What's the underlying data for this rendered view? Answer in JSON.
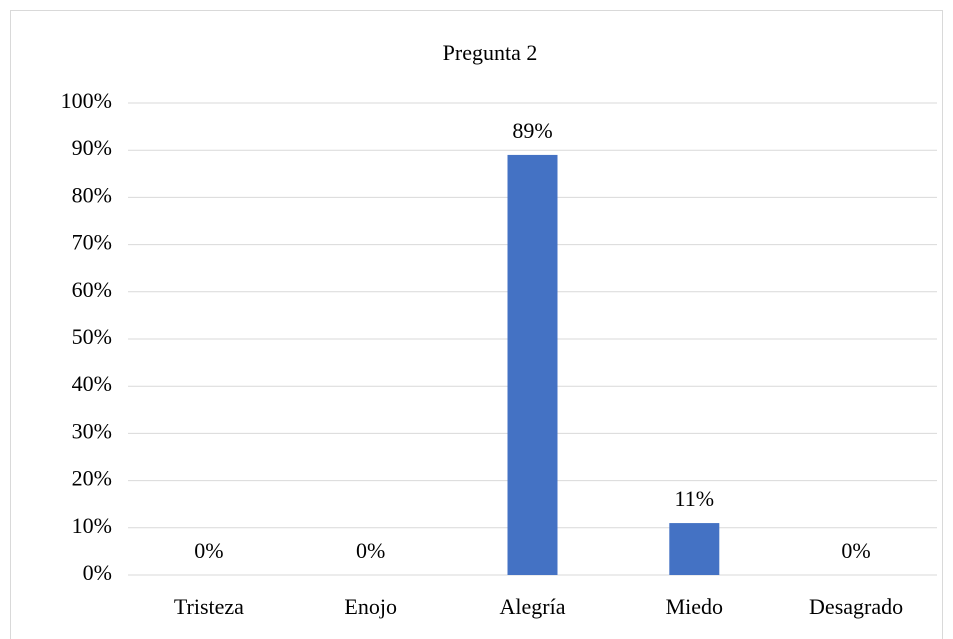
{
  "chart_data": {
    "type": "bar",
    "title": "Pregunta 2",
    "categories": [
      "Tristeza",
      "Enojo",
      "Alegría",
      "Miedo",
      "Desagrado"
    ],
    "values": [
      0,
      0,
      89,
      11,
      0
    ],
    "value_labels": [
      "0%",
      "0%",
      "89%",
      "11%",
      "0%"
    ],
    "color": "#4472c4",
    "ylim": [
      0,
      100
    ],
    "yticks": [
      {
        "value": 0,
        "label": "0%"
      },
      {
        "value": 10,
        "label": "10%"
      },
      {
        "value": 20,
        "label": "20%"
      },
      {
        "value": 30,
        "label": "30%"
      },
      {
        "value": 40,
        "label": "40%"
      },
      {
        "value": 50,
        "label": "50%"
      },
      {
        "value": 60,
        "label": "60%"
      },
      {
        "value": 70,
        "label": "70%"
      },
      {
        "value": 80,
        "label": "80%"
      },
      {
        "value": 90,
        "label": "90%"
      },
      {
        "value": 100,
        "label": "100%"
      }
    ],
    "grid": true
  }
}
